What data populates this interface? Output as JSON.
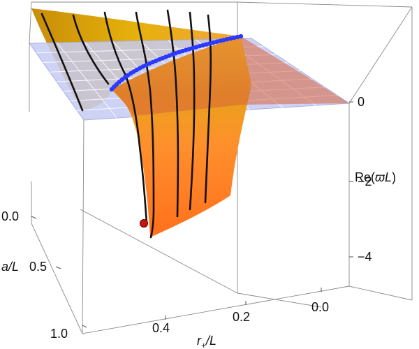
{
  "chart_data": {
    "type": "surface3d",
    "axes": {
      "r_plus_over_L": {
        "label_main": "r",
        "label_sub": "+",
        "label_tail": "/L",
        "ticks": [
          "0.4",
          "0.2",
          "0.0"
        ]
      },
      "a_over_L": {
        "label_main": "a",
        "label_tail": "/L",
        "ticks": [
          "0.0",
          "0.5",
          "1.0"
        ]
      },
      "re_omega_L": {
        "label_main": "Re(",
        "label_sym": "ϖ",
        "label_var": "L",
        "label_tail": ")",
        "ticks": [
          "0",
          "−2",
          "−4"
        ]
      }
    },
    "zero_plane": {
      "z": 0,
      "color": "#c8cdf5"
    },
    "surface_colors": {
      "top": "#f5c400",
      "bottom": "#ff7a1a"
    },
    "zero_crossing_curve_color": "#2a3aff",
    "marker": {
      "color": "#cc1111",
      "r_plus_over_L": 0.36,
      "a_over_L": 0.0
    },
    "grid_lines_count": 8
  }
}
